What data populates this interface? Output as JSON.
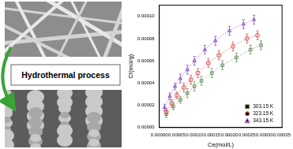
{
  "diagram": {
    "arrow_label": "Hydrothermal process"
  },
  "chart_data": {
    "type": "scatter",
    "x_label": "Ce(mol/L)",
    "y_label": "Cf(mol/g)",
    "xlim": [
      0,
      0.00035
    ],
    "ylim": [
      0,
      0.00011
    ],
    "xticks": [
      {
        "value": 0,
        "label": "0.00000"
      },
      {
        "value": 5e-05,
        "label": "0.00005"
      },
      {
        "value": 0.0001,
        "label": "0.00010"
      },
      {
        "value": 0.00015,
        "label": "0.00015"
      },
      {
        "value": 0.0002,
        "label": "0.00020"
      },
      {
        "value": 0.00025,
        "label": "0.00025"
      },
      {
        "value": 0.0003,
        "label": "0.00030"
      },
      {
        "value": 0.00035,
        "label": "0.00035"
      }
    ],
    "yticks": [
      {
        "value": 0,
        "label": "0.00000"
      },
      {
        "value": 2e-05,
        "label": "0.00002"
      },
      {
        "value": 4e-05,
        "label": "0.00004"
      },
      {
        "value": 6e-05,
        "label": "0.00006"
      },
      {
        "value": 8e-05,
        "label": "0.00008"
      },
      {
        "value": 0.0001,
        "label": "0.00010"
      }
    ],
    "grid": false,
    "legend": "lower right",
    "series": [
      {
        "name": "303.15 K",
        "color": "#6b8f5e",
        "marker": "square",
        "line_style": "dotted",
        "x": [
          2e-05,
          4e-05,
          6e-05,
          8e-05,
          0.0001,
          0.00012,
          0.00015,
          0.00018,
          0.00022,
          0.00026,
          0.00029
        ],
        "values": [
          1.2e-05,
          1.9e-05,
          2.5e-05,
          3.1e-05,
          3.7e-05,
          4.2e-05,
          4.9e-05,
          5.6e-05,
          6.3e-05,
          7e-05,
          7.4e-05
        ],
        "errors": [
          3e-06,
          3e-06,
          3e-06,
          4e-06,
          4e-06,
          4e-06,
          4e-06,
          4e-06,
          4e-06,
          4e-06,
          4e-06
        ]
      },
      {
        "name": "323.15 K",
        "color": "#e05050",
        "marker": "circle",
        "line_style": "dotted",
        "x": [
          2e-05,
          3.5e-05,
          5e-05,
          7e-05,
          9e-05,
          0.00011,
          0.00014,
          0.00017,
          0.00021,
          0.00025,
          0.00028
        ],
        "values": [
          1.4e-05,
          2.2e-05,
          2.9e-05,
          3.6e-05,
          4.3e-05,
          4.9e-05,
          5.8e-05,
          6.5e-05,
          7.3e-05,
          8e-05,
          8.3e-05
        ],
        "errors": [
          3e-06,
          3e-06,
          3e-06,
          4e-06,
          4e-06,
          4e-06,
          4e-06,
          4e-06,
          4e-06,
          4e-06,
          4e-06
        ]
      },
      {
        "name": "343.15 K",
        "color": "#8a4fc0",
        "marker": "triangle",
        "line_style": "dotted",
        "x": [
          1.5e-05,
          3e-05,
          4.5e-05,
          6e-05,
          8e-05,
          0.0001,
          0.00013,
          0.00016,
          0.0002,
          0.00024,
          0.00027
        ],
        "values": [
          1.8e-05,
          2.8e-05,
          3.7e-05,
          4.4e-05,
          5.2e-05,
          6e-05,
          7e-05,
          7.8e-05,
          8.7e-05,
          9.3e-05,
          9.7e-05
        ],
        "errors": [
          3e-06,
          3e-06,
          3e-06,
          4e-06,
          4e-06,
          4e-06,
          4e-06,
          4e-06,
          4e-06,
          4e-06,
          4e-06
        ]
      }
    ]
  }
}
